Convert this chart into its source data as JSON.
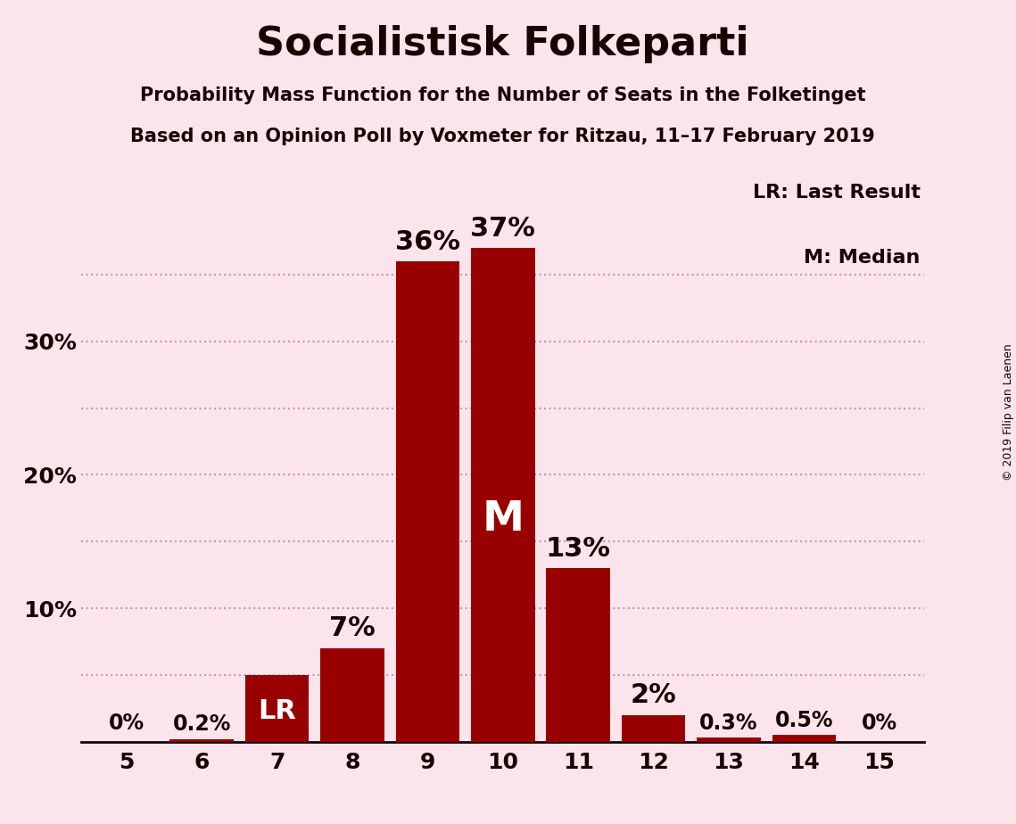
{
  "title": "Socialistisk Folkeparti",
  "subtitle1": "Probability Mass Function for the Number of Seats in the Folketinget",
  "subtitle2": "Based on an Opinion Poll by Voxmeter for Ritzau, 11–17 February 2019",
  "copyright": "© 2019 Filip van Laenen",
  "categories": [
    5,
    6,
    7,
    8,
    9,
    10,
    11,
    12,
    13,
    14,
    15
  ],
  "values": [
    0.0,
    0.2,
    5.0,
    7.0,
    36.0,
    37.0,
    13.0,
    2.0,
    0.3,
    0.5,
    0.0
  ],
  "labels": [
    "0%",
    "0.2%",
    "LR",
    "7%",
    "36%",
    "37%",
    "13%",
    "2%",
    "0.3%",
    "0.5%",
    "0%"
  ],
  "bar_color": "#990000",
  "background_color": "#fce4ec",
  "text_color": "#1a0000",
  "grid_color": "#cc9999",
  "ylabel_values": [
    10,
    20,
    30
  ],
  "ylim": [
    0,
    42
  ],
  "lr_seat": 7,
  "median_seat": 10,
  "lr_label": "LR",
  "median_label": "M",
  "legend_lr": "LR: Last Result",
  "legend_m": "M: Median"
}
